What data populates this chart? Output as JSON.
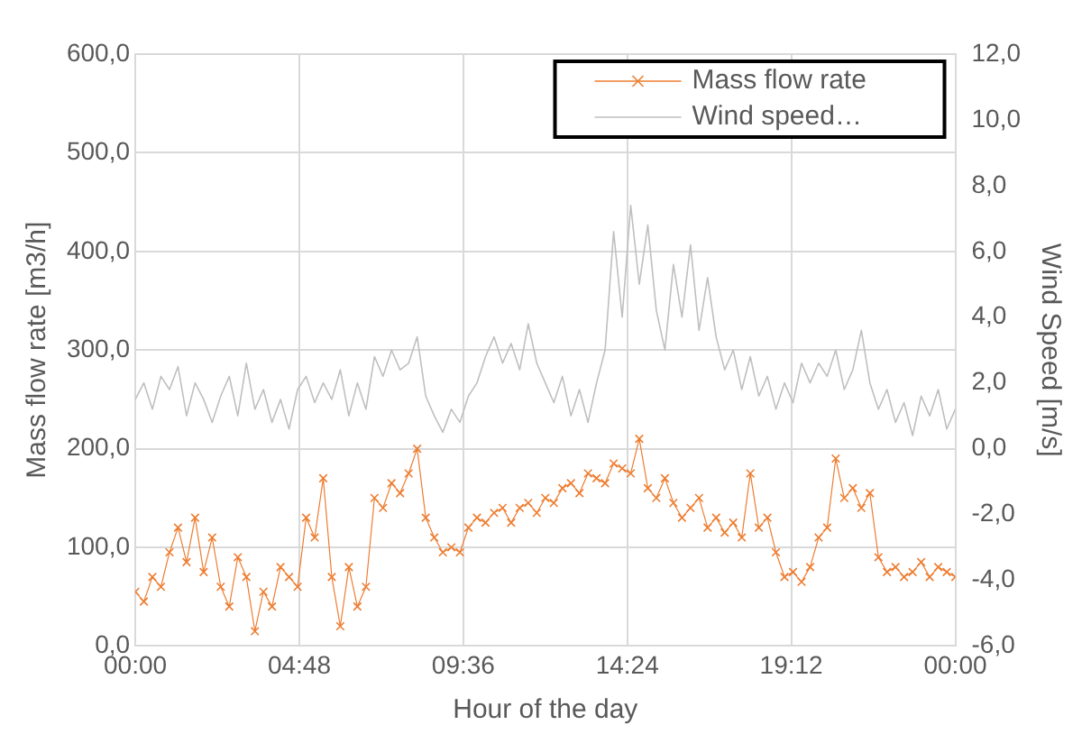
{
  "chart_data": {
    "type": "line",
    "xlabel": "Hour of the day",
    "ylabel": "Mass flow rate [m3/h]",
    "y2label": "Wind Speed [m/s]",
    "xlim": [
      0,
      24
    ],
    "xticks": [
      {
        "value": 0,
        "label": "00:00"
      },
      {
        "value": 4.8,
        "label": "04:48"
      },
      {
        "value": 9.6,
        "label": "09:36"
      },
      {
        "value": 14.4,
        "label": "14:24"
      },
      {
        "value": 19.2,
        "label": "19:12"
      },
      {
        "value": 24,
        "label": "00:00"
      }
    ],
    "ylim": [
      0,
      600
    ],
    "yticks": [
      {
        "value": 0,
        "label": "0,0"
      },
      {
        "value": 100,
        "label": "100,0"
      },
      {
        "value": 200,
        "label": "200,0"
      },
      {
        "value": 300,
        "label": "300,0"
      },
      {
        "value": 400,
        "label": "400,0"
      },
      {
        "value": 500,
        "label": "500,0"
      },
      {
        "value": 600,
        "label": "600,0"
      }
    ],
    "y2lim": [
      -6,
      12
    ],
    "y2ticks": [
      {
        "value": -6,
        "label": "-6,0"
      },
      {
        "value": -4,
        "label": "-4,0"
      },
      {
        "value": -2,
        "label": "-2,0"
      },
      {
        "value": 0,
        "label": "0,0"
      },
      {
        "value": 2,
        "label": "2,0"
      },
      {
        "value": 4,
        "label": "4,0"
      },
      {
        "value": 6,
        "label": "6,0"
      },
      {
        "value": 8,
        "label": "8,0"
      },
      {
        "value": 10,
        "label": "10,0"
      },
      {
        "value": 12,
        "label": "12,0"
      }
    ],
    "x": [
      0,
      0.25,
      0.5,
      0.75,
      1,
      1.25,
      1.5,
      1.75,
      2,
      2.25,
      2.5,
      2.75,
      3,
      3.25,
      3.5,
      3.75,
      4,
      4.25,
      4.5,
      4.75,
      5,
      5.25,
      5.5,
      5.75,
      6,
      6.25,
      6.5,
      6.75,
      7,
      7.25,
      7.5,
      7.75,
      8,
      8.25,
      8.5,
      8.75,
      9,
      9.25,
      9.5,
      9.75,
      10,
      10.25,
      10.5,
      10.75,
      11,
      11.25,
      11.5,
      11.75,
      12,
      12.25,
      12.5,
      12.75,
      13,
      13.25,
      13.5,
      13.75,
      14,
      14.25,
      14.5,
      14.75,
      15,
      15.25,
      15.5,
      15.75,
      16,
      16.25,
      16.5,
      16.75,
      17,
      17.25,
      17.5,
      17.75,
      18,
      18.25,
      18.5,
      18.75,
      19,
      19.25,
      19.5,
      19.75,
      20,
      20.25,
      20.5,
      20.75,
      21,
      21.25,
      21.5,
      21.75,
      22,
      22.25,
      22.5,
      22.75,
      23,
      23.25,
      23.5,
      23.75,
      24
    ],
    "series": [
      {
        "name": "Mass flow rate",
        "color": "#ed7d31",
        "marker": "cross",
        "values": [
          55,
          45,
          70,
          60,
          95,
          120,
          85,
          130,
          75,
          110,
          60,
          40,
          90,
          70,
          15,
          55,
          40,
          80,
          70,
          60,
          130,
          110,
          170,
          70,
          20,
          80,
          40,
          60,
          150,
          140,
          165,
          155,
          175,
          200,
          130,
          110,
          95,
          100,
          95,
          120,
          130,
          125,
          135,
          140,
          125,
          140,
          145,
          135,
          150,
          145,
          160,
          165,
          155,
          175,
          170,
          165,
          185,
          180,
          175,
          210,
          160,
          150,
          170,
          145,
          130,
          140,
          150,
          120,
          130,
          115,
          125,
          110,
          175,
          120,
          130,
          95,
          70,
          75,
          65,
          80,
          110,
          120,
          190,
          150,
          160,
          140,
          155,
          90,
          75,
          80,
          70,
          75,
          85,
          70,
          80,
          75,
          70
        ]
      },
      {
        "name": "Wind speed…",
        "color": "#bfbfbf",
        "marker": "none",
        "axis": "y2",
        "values": [
          1.5,
          2.0,
          1.2,
          2.2,
          1.8,
          2.5,
          1.0,
          2.0,
          1.5,
          0.8,
          1.6,
          2.2,
          1.0,
          2.6,
          1.2,
          1.8,
          0.8,
          1.5,
          0.6,
          1.8,
          2.2,
          1.4,
          2.0,
          1.5,
          2.4,
          1.0,
          2.0,
          1.2,
          2.8,
          2.2,
          3.0,
          2.4,
          2.6,
          3.4,
          1.6,
          1.0,
          0.5,
          1.2,
          0.8,
          1.6,
          2.0,
          2.8,
          3.4,
          2.6,
          3.2,
          2.4,
          3.8,
          2.6,
          2.0,
          1.4,
          2.2,
          1.0,
          1.8,
          0.8,
          2.0,
          3.0,
          6.6,
          4.0,
          7.4,
          5.0,
          6.8,
          4.2,
          3.0,
          5.6,
          4.0,
          6.2,
          3.6,
          5.2,
          3.4,
          2.4,
          3.0,
          1.8,
          2.8,
          1.6,
          2.2,
          1.2,
          2.0,
          1.4,
          2.6,
          2.0,
          2.6,
          2.2,
          3.0,
          1.8,
          2.4,
          3.6,
          2.0,
          1.2,
          1.8,
          0.8,
          1.4,
          0.4,
          1.6,
          1.0,
          1.8,
          0.6,
          1.2
        ]
      }
    ],
    "grid": true,
    "legend": "top right"
  }
}
